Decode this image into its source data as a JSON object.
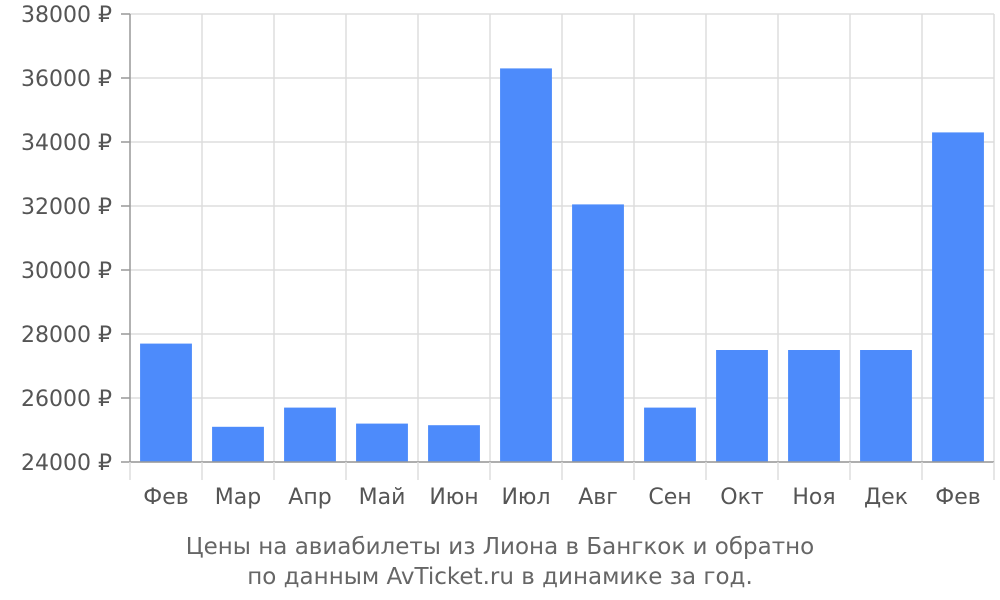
{
  "caption": {
    "line1": "Цены на авиабилеты из Лиона в Бангкок и обратно",
    "line2": "по данным AvTicket.ru в динамике за год."
  },
  "colors": {
    "bar": "#4d8bfb",
    "grid": "#dddddd",
    "axis": "#999999",
    "text": "#555555"
  },
  "chart_data": {
    "type": "bar",
    "categories": [
      "Фев",
      "Мар",
      "Апр",
      "Май",
      "Июн",
      "Июл",
      "Авг",
      "Сен",
      "Окт",
      "Ноя",
      "Дек",
      "Фев"
    ],
    "values": [
      27700,
      25100,
      25700,
      25200,
      25150,
      36300,
      32050,
      25700,
      27500,
      27500,
      27500,
      34300
    ],
    "ylim": [
      24000,
      38000
    ],
    "yticks": [
      24000,
      26000,
      28000,
      30000,
      32000,
      34000,
      36000,
      38000
    ],
    "ytick_suffix": " ₽",
    "grid": true,
    "title": "",
    "xlabel": "",
    "ylabel": ""
  }
}
